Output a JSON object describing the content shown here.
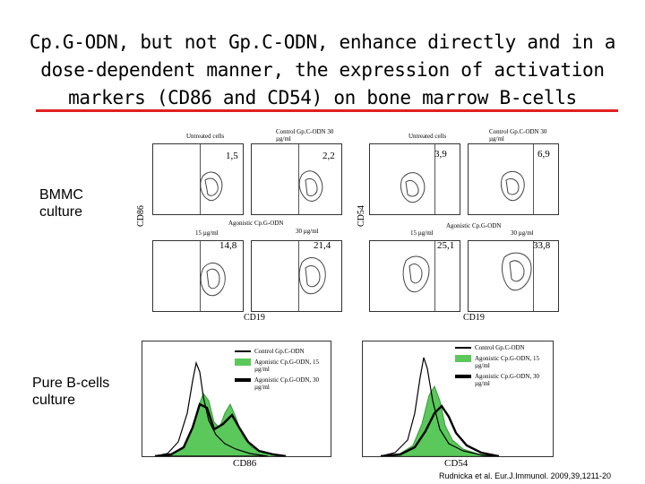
{
  "title": "Cp.G-ODN, but not Gp.C-ODN, enhance directly and in a dose-dependent manner, the expression of activation markers (CD86 and CD54) on bone marrow B-cells",
  "left_labels": {
    "bmmc": "BMMC culture",
    "pure": "Pure B-cells culture"
  },
  "dotplots": {
    "left": {
      "y_label": "CD86",
      "x_label": "CD19",
      "top_left_title": "Untreated cells",
      "top_right_title": "Control Gp.C-ODN 30 µg/ml",
      "mid_title": "Agonistic Cp.G-ODN",
      "dose_left": "15 µg/ml",
      "dose_right": "30 µg/ml",
      "values": [
        "1,5",
        "2,2",
        "14,8",
        "21,4"
      ]
    },
    "right": {
      "y_label": "CD54",
      "x_label": "CD19",
      "top_left_title": "Untreated cells",
      "top_right_title": "Control Gp.C-ODN 30 µg/ml",
      "mid_title": "Agonistic Cp.G-ODN",
      "dose_left": "15 µg/ml",
      "dose_right": "30 µg/ml",
      "values": [
        "3,9",
        "6,9",
        "25,1",
        "33,8"
      ]
    }
  },
  "histograms": {
    "left": {
      "x_label": "CD86"
    },
    "right": {
      "x_label": "CD54"
    },
    "legend": [
      "Control Gp.C-ODN",
      "Agonistic Cp.G-ODN, 15 µg/ml",
      "Agonistic Cp.G-ODN, 30 µg/ml"
    ],
    "legend_colors": {
      "control": "#000000",
      "low": "#5ac85a",
      "high": "#000000"
    }
  },
  "citation": "Rudnicka et al. Eur.J.Immunol. 2009,39,1211-20"
}
